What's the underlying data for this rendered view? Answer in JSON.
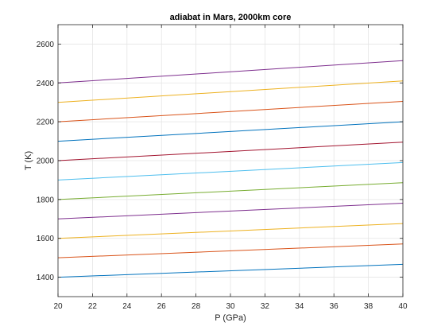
{
  "chart_data": {
    "type": "line",
    "title": "adiabat in Mars, 2000km core",
    "xlabel": "P (GPa)",
    "ylabel": "T (K)",
    "xlim": [
      20,
      40
    ],
    "ylim": [
      1300,
      2700
    ],
    "x_ticks": [
      20,
      22,
      24,
      26,
      28,
      30,
      32,
      34,
      36,
      38,
      40
    ],
    "y_ticks": [
      1400,
      1600,
      1800,
      2000,
      2200,
      2400,
      2600
    ],
    "grid": true,
    "x": [
      20,
      40
    ],
    "series": [
      {
        "color": "#0072BD",
        "values": [
          1400,
          1466
        ]
      },
      {
        "color": "#D95319",
        "values": [
          1500,
          1571
        ]
      },
      {
        "color": "#EDB120",
        "values": [
          1600,
          1676
        ]
      },
      {
        "color": "#7E2F8E",
        "values": [
          1700,
          1781
        ]
      },
      {
        "color": "#77AC30",
        "values": [
          1800,
          1886
        ]
      },
      {
        "color": "#4DBEEE",
        "values": [
          1900,
          1990
        ]
      },
      {
        "color": "#A2142F",
        "values": [
          2000,
          2095
        ]
      },
      {
        "color": "#0072BD",
        "values": [
          2100,
          2200
        ]
      },
      {
        "color": "#D95319",
        "values": [
          2200,
          2305
        ]
      },
      {
        "color": "#EDB120",
        "values": [
          2300,
          2410
        ]
      },
      {
        "color": "#7E2F8E",
        "values": [
          2400,
          2515
        ]
      }
    ]
  }
}
